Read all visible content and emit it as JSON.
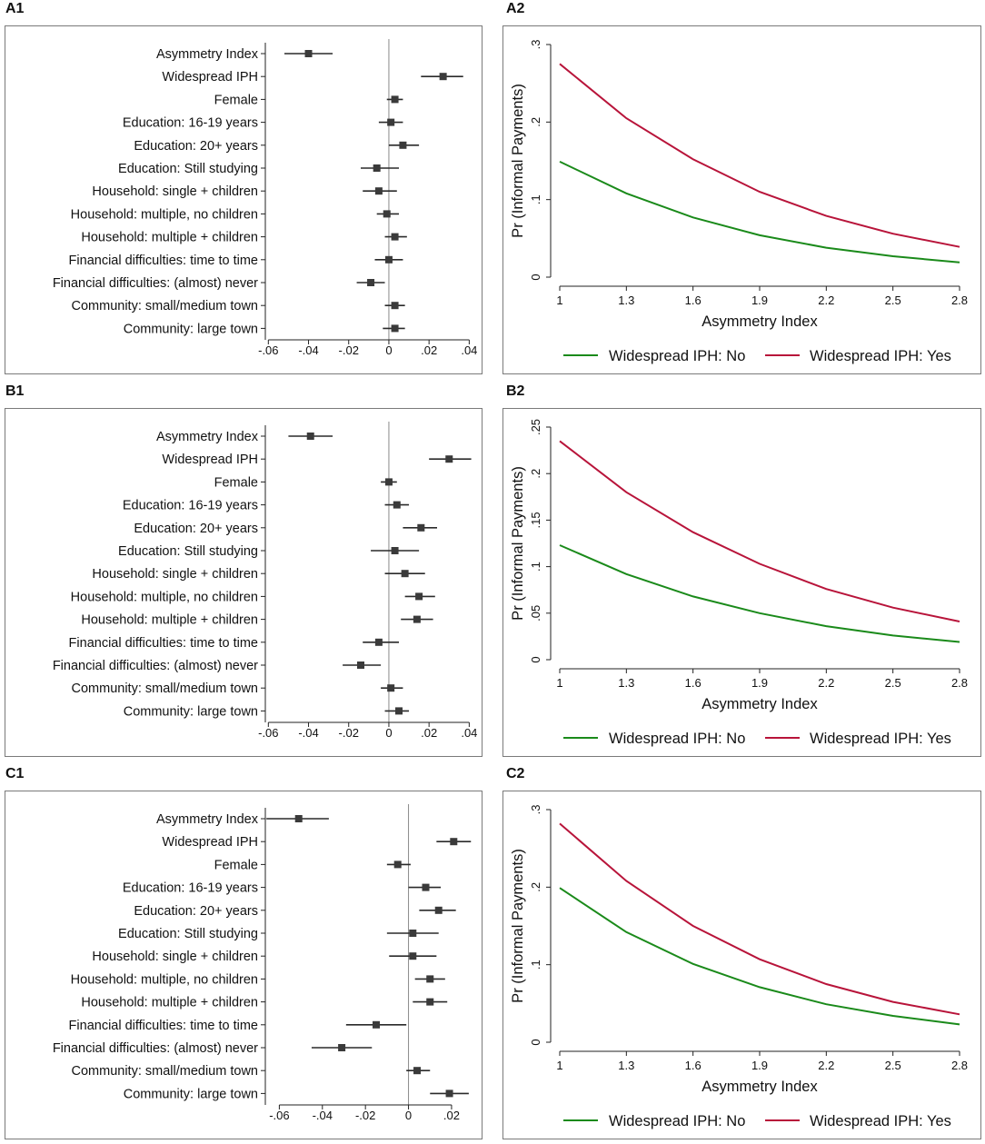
{
  "panels": {
    "A1": "A1",
    "A2": "A2",
    "B1": "B1",
    "B2": "B2",
    "C1": "C1",
    "C2": "C2"
  },
  "chart_data": [
    {
      "id": "A1",
      "type": "scatter",
      "subtype": "coefficient-plot",
      "categories": [
        "Asymmetry Index",
        "Widespread IPH",
        "Female",
        "Education: 16-19 years",
        "Education: 20+ years",
        "Education: Still studying",
        "Household: single + children",
        "Household: multiple, no children",
        "Household: multiple + children",
        "Financial difficulties: time to time",
        "Financial difficulties: (almost) never",
        "Community: small/medium town",
        "Community: large town"
      ],
      "values": [
        -0.04,
        0.027,
        0.003,
        0.001,
        0.007,
        -0.006,
        -0.005,
        -0.001,
        0.003,
        0.0,
        -0.009,
        0.003,
        0.003
      ],
      "ci_low": [
        -0.052,
        0.016,
        -0.001,
        -0.005,
        0.0,
        -0.014,
        -0.013,
        -0.006,
        -0.002,
        -0.007,
        -0.016,
        -0.002,
        -0.003
      ],
      "ci_high": [
        -0.028,
        0.037,
        0.007,
        0.007,
        0.015,
        0.005,
        0.004,
        0.005,
        0.009,
        0.007,
        -0.002,
        0.008,
        0.008
      ],
      "xlim": [
        -0.0615,
        0.043
      ],
      "xticks": [
        -0.06,
        -0.04,
        -0.02,
        0,
        0.02,
        0.04
      ],
      "xtick_labels": [
        "-.06",
        "-.04",
        "-.02",
        "0",
        ".02",
        ".04"
      ]
    },
    {
      "id": "A2",
      "type": "line",
      "x": [
        1.0,
        1.3,
        1.6,
        1.9,
        2.2,
        2.5,
        2.8
      ],
      "xtick_labels": [
        "1",
        "1.3",
        "1.6",
        "1.9",
        "2.2",
        "2.5",
        "2.8"
      ],
      "series": [
        {
          "name": "Widespread IPH: No",
          "color": "#1a8a1a",
          "values": [
            0.149,
            0.108,
            0.077,
            0.054,
            0.038,
            0.027,
            0.019
          ]
        },
        {
          "name": "Widespread IPH: Yes",
          "color": "#b8143a",
          "values": [
            0.275,
            0.205,
            0.152,
            0.11,
            0.079,
            0.056,
            0.039
          ]
        }
      ],
      "xlabel": "Asymmetry Index",
      "ylabel": "Pr (Informal Payments)",
      "ylim": [
        0,
        0.3
      ],
      "yticks": [
        0,
        0.1,
        0.2,
        0.3
      ],
      "ytick_labels": [
        "0",
        ".1",
        ".2",
        ".3"
      ]
    },
    {
      "id": "B1",
      "type": "scatter",
      "subtype": "coefficient-plot",
      "categories": [
        "Asymmetry Index",
        "Widespread IPH",
        "Female",
        "Education: 16-19 years",
        "Education: 20+ years",
        "Education: Still studying",
        "Household: single + children",
        "Household: multiple, no children",
        "Household: multiple + children",
        "Financial difficulties: time to time",
        "Financial difficulties: (almost) never",
        "Community: small/medium town",
        "Community: large town"
      ],
      "values": [
        -0.039,
        0.03,
        0.0,
        0.004,
        0.016,
        0.003,
        0.008,
        0.015,
        0.014,
        -0.005,
        -0.014,
        0.001,
        0.005
      ],
      "ci_low": [
        -0.05,
        0.02,
        -0.004,
        -0.002,
        0.007,
        -0.009,
        -0.002,
        0.008,
        0.006,
        -0.013,
        -0.023,
        -0.004,
        -0.002
      ],
      "ci_high": [
        -0.028,
        0.041,
        0.004,
        0.01,
        0.024,
        0.015,
        0.018,
        0.023,
        0.022,
        0.005,
        -0.004,
        0.007,
        0.01
      ],
      "xlim": [
        -0.0615,
        0.043
      ],
      "xticks": [
        -0.06,
        -0.04,
        -0.02,
        0,
        0.02,
        0.04
      ],
      "xtick_labels": [
        "-.06",
        "-.04",
        "-.02",
        "0",
        ".02",
        ".04"
      ]
    },
    {
      "id": "B2",
      "type": "line",
      "x": [
        1.0,
        1.3,
        1.6,
        1.9,
        2.2,
        2.5,
        2.8
      ],
      "xtick_labels": [
        "1",
        "1.3",
        "1.6",
        "1.9",
        "2.2",
        "2.5",
        "2.8"
      ],
      "series": [
        {
          "name": "Widespread IPH: No",
          "color": "#1a8a1a",
          "values": [
            0.123,
            0.092,
            0.068,
            0.05,
            0.036,
            0.026,
            0.019
          ]
        },
        {
          "name": "Widespread IPH: Yes",
          "color": "#b8143a",
          "values": [
            0.235,
            0.18,
            0.137,
            0.103,
            0.076,
            0.056,
            0.041
          ]
        }
      ],
      "xlabel": "Asymmetry Index",
      "ylabel": "Pr (Informal Payments)",
      "ylim": [
        0,
        0.25
      ],
      "yticks": [
        0,
        0.05,
        0.1,
        0.15,
        0.2,
        0.25
      ],
      "ytick_labels": [
        "0",
        ".05",
        ".1",
        ".15",
        ".2",
        ".25"
      ]
    },
    {
      "id": "C1",
      "type": "scatter",
      "subtype": "coefficient-plot",
      "categories": [
        "Asymmetry Index",
        "Widespread IPH",
        "Female",
        "Education: 16-19 years",
        "Education: 20+ years",
        "Education: Still studying",
        "Household: single + children",
        "Household: multiple, no children",
        "Household: multiple + children",
        "Financial difficulties: time to time",
        "Financial difficulties: (almost) never",
        "Community: small/medium town",
        "Community: large town"
      ],
      "values": [
        -0.051,
        0.021,
        -0.005,
        0.008,
        0.014,
        0.002,
        0.002,
        0.01,
        0.01,
        -0.015,
        -0.031,
        0.004,
        0.019
      ],
      "ci_low": [
        -0.066,
        0.013,
        -0.01,
        0.0,
        0.005,
        -0.01,
        -0.009,
        0.003,
        0.002,
        -0.029,
        -0.045,
        -0.001,
        0.01
      ],
      "ci_high": [
        -0.037,
        0.029,
        0.001,
        0.015,
        0.022,
        0.014,
        0.013,
        0.017,
        0.018,
        -0.001,
        -0.017,
        0.01,
        0.028
      ],
      "xlim": [
        -0.0665,
        0.031
      ],
      "xticks": [
        -0.06,
        -0.04,
        -0.02,
        0,
        0.02
      ],
      "xtick_labels": [
        "-.06",
        "-.04",
        "-.02",
        "0",
        ".02"
      ]
    },
    {
      "id": "C2",
      "type": "line",
      "x": [
        1.0,
        1.3,
        1.6,
        1.9,
        2.2,
        2.5,
        2.8
      ],
      "xtick_labels": [
        "1",
        "1.3",
        "1.6",
        "1.9",
        "2.2",
        "2.5",
        "2.8"
      ],
      "series": [
        {
          "name": "Widespread IPH: No",
          "color": "#1a8a1a",
          "values": [
            0.199,
            0.142,
            0.101,
            0.071,
            0.049,
            0.034,
            0.023
          ]
        },
        {
          "name": "Widespread IPH: Yes",
          "color": "#b8143a",
          "values": [
            0.282,
            0.208,
            0.15,
            0.107,
            0.075,
            0.052,
            0.036
          ]
        }
      ],
      "xlabel": "Asymmetry Index",
      "ylabel": "Pr (Informal Payments)",
      "ylim": [
        0,
        0.3
      ],
      "yticks": [
        0,
        0.1,
        0.2,
        0.3
      ],
      "ytick_labels": [
        "0",
        ".1",
        ".2",
        ".3"
      ]
    }
  ]
}
